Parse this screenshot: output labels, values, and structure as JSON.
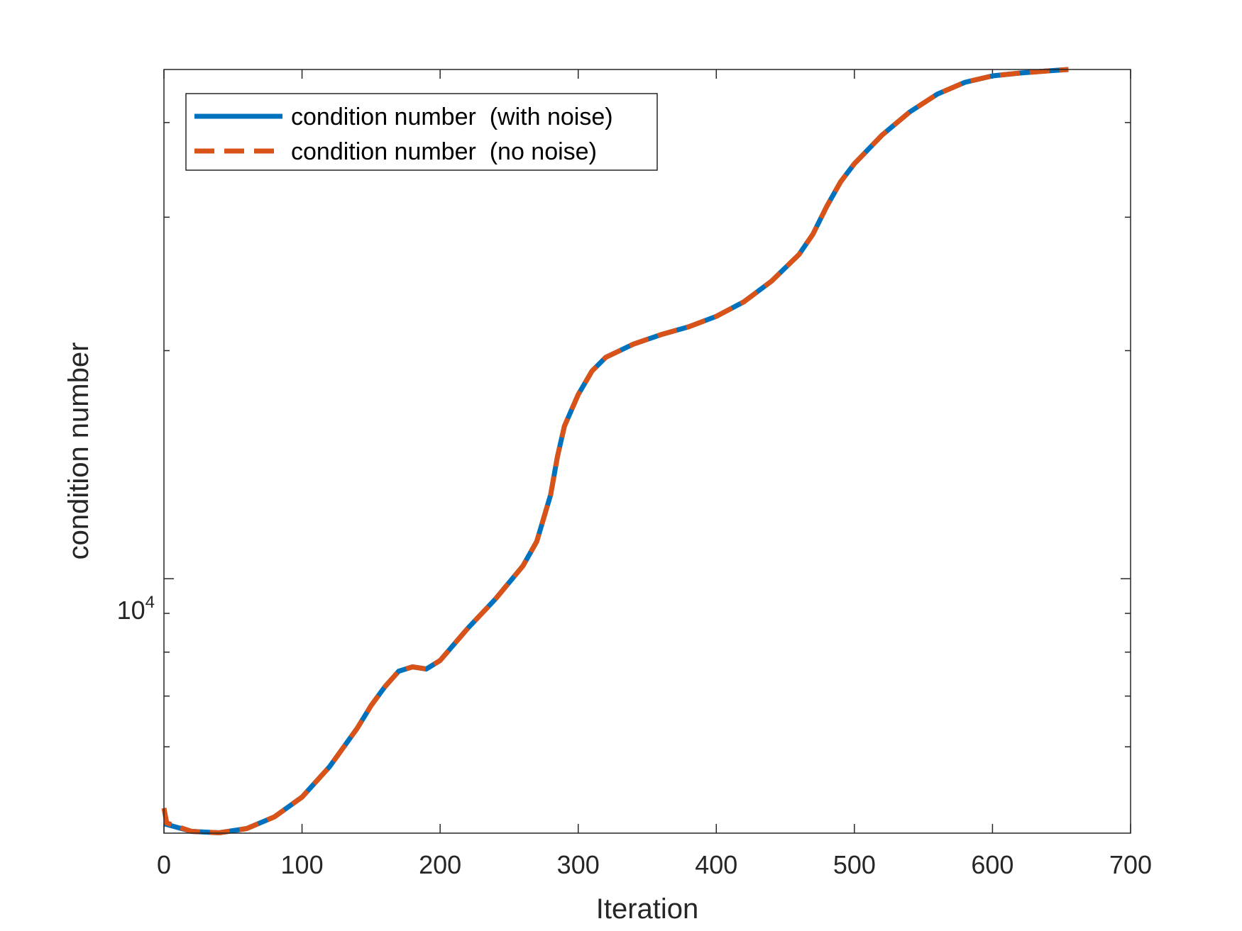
{
  "chart_data": {
    "type": "line",
    "xlabel": "Iteration",
    "ylabel": "condition number",
    "xlim": [
      0,
      700
    ],
    "ylim": [
      4615,
      47000
    ],
    "y_scale": "log",
    "x_ticks": [
      "0",
      "100",
      "200",
      "300",
      "400",
      "500",
      "600",
      "700"
    ],
    "y_tick_label": {
      "base": "10",
      "exponent": "4"
    },
    "y_minor_ticks": [
      6000,
      7000,
      8000,
      9000,
      20000,
      30000,
      40000
    ],
    "grid": false,
    "legend": {
      "position": "top-left"
    },
    "series": [
      {
        "name": "condition number  (with noise)",
        "color": "#0072BD",
        "style": "solid",
        "x": [
          0,
          20,
          40,
          60,
          80,
          100,
          120,
          140,
          150,
          160,
          170,
          180,
          190,
          200,
          220,
          240,
          260,
          270,
          280,
          285,
          290,
          300,
          310,
          320,
          340,
          360,
          380,
          400,
          420,
          440,
          460,
          470,
          480,
          490,
          500,
          520,
          540,
          560,
          580,
          600,
          620,
          640,
          655
        ],
        "y": [
          4750,
          4640,
          4620,
          4680,
          4850,
          5150,
          5650,
          6350,
          6800,
          7200,
          7550,
          7650,
          7600,
          7800,
          8600,
          9400,
          10400,
          11200,
          12900,
          14500,
          15900,
          17500,
          18800,
          19600,
          20400,
          21000,
          21500,
          22200,
          23200,
          24700,
          26800,
          28500,
          31000,
          33400,
          35300,
          38500,
          41300,
          43600,
          45200,
          46100,
          46500,
          46800,
          47000
        ]
      },
      {
        "name": "condition number  (no noise)",
        "color": "#D95319",
        "style": "dashed",
        "x": [
          0,
          2,
          20,
          40,
          60,
          80,
          100,
          120,
          140,
          150,
          160,
          170,
          180,
          190,
          200,
          220,
          240,
          260,
          270,
          280,
          285,
          290,
          300,
          310,
          320,
          340,
          360,
          380,
          400,
          420,
          440,
          460,
          470,
          480,
          490,
          500,
          520,
          540,
          560,
          580,
          600,
          620,
          640,
          655
        ],
        "y": [
          4980,
          4760,
          4640,
          4620,
          4680,
          4850,
          5150,
          5650,
          6350,
          6800,
          7200,
          7550,
          7650,
          7600,
          7800,
          8600,
          9400,
          10400,
          11200,
          12900,
          14500,
          15900,
          17500,
          18800,
          19600,
          20400,
          21000,
          21500,
          22200,
          23200,
          24700,
          26800,
          28500,
          31000,
          33400,
          35300,
          38500,
          41300,
          43600,
          45200,
          46100,
          46500,
          46800,
          47000
        ]
      }
    ]
  }
}
